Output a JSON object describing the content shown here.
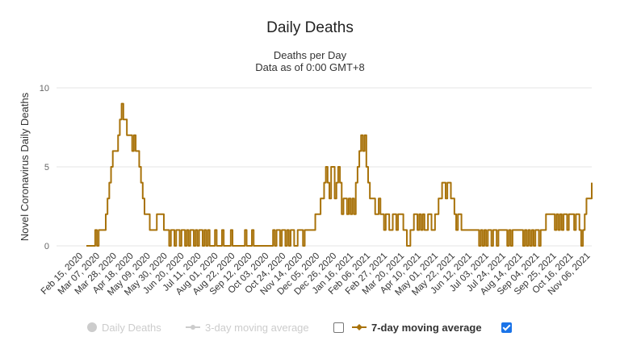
{
  "chart_data": {
    "type": "line",
    "title": "Daily Deaths",
    "subtitle_lines": [
      "Deaths per Day",
      "Data as of 0:00 GMT+8"
    ],
    "ylabel": "Novel Coronavirus Daily Deaths",
    "xlabel": "",
    "ylim": [
      0,
      10
    ],
    "yticks": [
      0,
      5,
      10
    ],
    "grid": true,
    "legend_position": "bottom",
    "x_tick_labels": [
      "Feb 15, 2020",
      "Mar 07, 2020",
      "Mar 28, 2020",
      "Apr 18, 2020",
      "May 09, 2020",
      "May 30, 2020",
      "Jun 20, 2020",
      "Jul 11, 2020",
      "Aug 01, 2020",
      "Aug 22, 2020",
      "Sep 12, 2020",
      "Oct 03, 2020",
      "Oct 24, 2020",
      "Nov 14, 2020",
      "Dec 05, 2020",
      "Dec 26, 2020",
      "Jan 16, 2021",
      "Feb 06, 2021",
      "Feb 27, 2021",
      "Mar 20, 2021",
      "Apr 10, 2021",
      "May 01, 2021",
      "May 22, 2021",
      "Jun 12, 2021",
      "Jul 03, 2021",
      "Jul 24, 2021",
      "Aug 14, 2021",
      "Sep 04, 2021",
      "Sep 25, 2021",
      "Oct 16, 2021",
      "Nov 06, 2021"
    ],
    "series": [
      {
        "name": "7-day moving average",
        "color": "#a8720a",
        "step_days": 3,
        "start_date": "Feb 15, 2020",
        "values": [
          0,
          0,
          0,
          0,
          0,
          1,
          0,
          1,
          1,
          1,
          1,
          2,
          3,
          4,
          5,
          6,
          6,
          6,
          7,
          8,
          9,
          8,
          8,
          7,
          7,
          7,
          6,
          7,
          6,
          6,
          5,
          4,
          3,
          2,
          2,
          2,
          1,
          1,
          1,
          1,
          2,
          2,
          2,
          2,
          1,
          1,
          1,
          0,
          1,
          1,
          0,
          1,
          1,
          0,
          1,
          1,
          0,
          1,
          0,
          1,
          1,
          0,
          1,
          0,
          1,
          1,
          0,
          1,
          0,
          1,
          0,
          0,
          0,
          1,
          0,
          0,
          0,
          1,
          0,
          0,
          0,
          0,
          1,
          0,
          0,
          0,
          0,
          0,
          0,
          0,
          1,
          0,
          0,
          0,
          1,
          0,
          0,
          0,
          0,
          0,
          0,
          0,
          0,
          0,
          0,
          0,
          1,
          0,
          1,
          1,
          0,
          1,
          1,
          0,
          1,
          0,
          1,
          1,
          0,
          0,
          1,
          1,
          1,
          0,
          1,
          1,
          1,
          1,
          1,
          1,
          2,
          2,
          2,
          3,
          3,
          4,
          5,
          4,
          3,
          5,
          5,
          3,
          4,
          5,
          4,
          2,
          3,
          3,
          2,
          3,
          2,
          3,
          2,
          4,
          5,
          6,
          7,
          6,
          7,
          5,
          4,
          3,
          3,
          3,
          2,
          2,
          3,
          2,
          2,
          1,
          2,
          2,
          1,
          1,
          2,
          2,
          1,
          2,
          2,
          2,
          1,
          1,
          0,
          0,
          1,
          1,
          2,
          2,
          1,
          2,
          1,
          2,
          1,
          1,
          2,
          2,
          1,
          1,
          2,
          2,
          3,
          3,
          4,
          4,
          3,
          4,
          4,
          3,
          3,
          2,
          1,
          2,
          2,
          1,
          1,
          1,
          1,
          1,
          1,
          1,
          1,
          1,
          1,
          0,
          1,
          0,
          1,
          0,
          1,
          1,
          0,
          1,
          1,
          0,
          1,
          1,
          1,
          1,
          1,
          0,
          1,
          0,
          1,
          1,
          1,
          1,
          1,
          1,
          0,
          1,
          0,
          1,
          0,
          1,
          0,
          1,
          1,
          0,
          1,
          1,
          1,
          2,
          2,
          2,
          2,
          2,
          1,
          2,
          1,
          2,
          1,
          2,
          2,
          1,
          2,
          2,
          2,
          1,
          2,
          2,
          1,
          0,
          1,
          2,
          3,
          3,
          3,
          4
        ]
      }
    ]
  },
  "legend": {
    "items": [
      {
        "label": "Daily Deaths",
        "checked": false,
        "active": false
      },
      {
        "label": "3-day moving average",
        "checked": false,
        "active": false
      },
      {
        "label": "7-day moving average",
        "checked": true,
        "active": true
      }
    ]
  },
  "colors": {
    "series": "#a8720a",
    "gridline": "#e6e6e6",
    "inactive": "#cccccc",
    "checkbox_checked": "#1a73e8"
  }
}
